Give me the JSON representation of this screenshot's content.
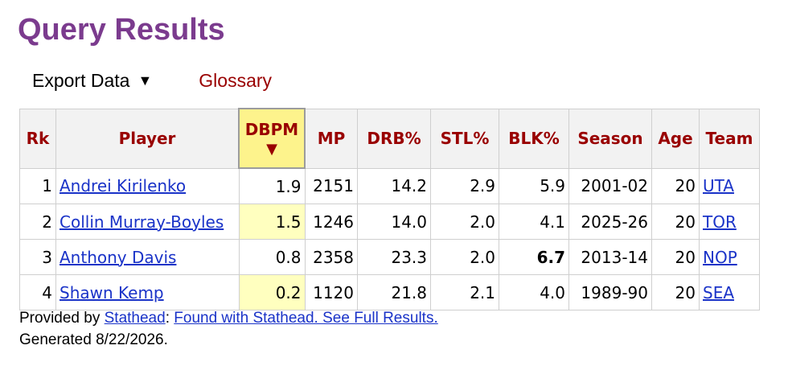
{
  "page_title": "Query Results",
  "toolbar": {
    "export_label": "Export Data",
    "export_caret": "▼",
    "glossary_label": "Glossary"
  },
  "table": {
    "columns": [
      "Rk",
      "Player",
      "DBPM",
      "MP",
      "DRB%",
      "STL%",
      "BLK%",
      "Season",
      "Age",
      "Team"
    ],
    "sorted_column": "DBPM",
    "sort_arrow": "▼",
    "rows": [
      {
        "rk": "1",
        "player": "Andrei Kirilenko",
        "dbpm": "1.9",
        "mp": "2151",
        "drb": "14.2",
        "stl": "2.9",
        "blk": "5.9",
        "season": "2001-02",
        "age": "20",
        "team": "UTA"
      },
      {
        "rk": "2",
        "player": "Collin Murray-Boyles",
        "dbpm": "1.5",
        "mp": "1246",
        "drb": "14.0",
        "stl": "2.0",
        "blk": "4.1",
        "season": "2025-26",
        "age": "20",
        "team": "TOR"
      },
      {
        "rk": "3",
        "player": "Anthony Davis",
        "dbpm": "0.8",
        "mp": "2358",
        "drb": "23.3",
        "stl": "2.0",
        "blk": "6.7",
        "season": "2013-14",
        "age": "20",
        "team": "NOP"
      },
      {
        "rk": "4",
        "player": "Shawn Kemp",
        "dbpm": "0.2",
        "mp": "1120",
        "drb": "21.8",
        "stl": "2.1",
        "blk": "4.0",
        "season": "1989-90",
        "age": "20",
        "team": "SEA"
      }
    ]
  },
  "footer": {
    "provided_by": "Provided by",
    "stathead_link": "Stathead",
    "colon": ":",
    "found_link": "Found with Stathead. See Full Results.",
    "generated": "Generated 8/22/2026."
  },
  "colors": {
    "title": "#7b3b8e",
    "header_text": "#990000",
    "link": "#1a33c8",
    "sorted_header_bg": "#fdf38c",
    "sorted_cell_bg": "#ffffbf"
  }
}
